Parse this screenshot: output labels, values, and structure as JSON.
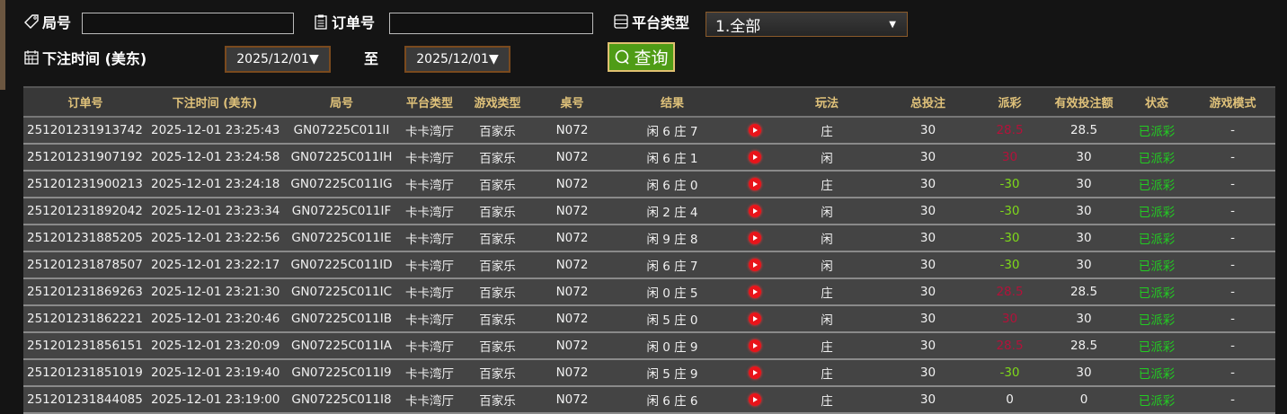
{
  "filters": {
    "round_label": "局号",
    "round_value": "",
    "order_label": "订单号",
    "order_value": "",
    "platform_label": "平台类型",
    "platform_selected": "1.全部",
    "bet_time_label": "下注时间 (美东)",
    "date_from": "2025/12/01▼",
    "to_label": "至",
    "date_to": "2025/12/01▼",
    "query_button": "查询"
  },
  "colors": {
    "header_text": "#e0c27a",
    "negative_payout": "#b3123a",
    "positive_payout": "#7fd91a",
    "status": "#22cc22",
    "query_button": "#4f9c16"
  },
  "table": {
    "columns": [
      "订单号",
      "下注时间 (美东)",
      "局号",
      "平台类型",
      "游戏类型",
      "桌号",
      "结果",
      "",
      "玩法",
      "总投注",
      "派彩",
      "有效投注额",
      "状态",
      "游戏模式"
    ],
    "rows": [
      [
        "251201231913742",
        "2025-12-01 23:25:43",
        "GN07225C011II",
        "卡卡湾厅",
        "百家乐",
        "N072",
        "闲 6 庄 7",
        "play-icon",
        "庄",
        "30",
        "28.5",
        "28.5",
        "已派彩",
        "-"
      ],
      [
        "251201231907192",
        "2025-12-01 23:24:58",
        "GN07225C011IH",
        "卡卡湾厅",
        "百家乐",
        "N072",
        "闲 6 庄 1",
        "play-icon",
        "闲",
        "30",
        "30",
        "30",
        "已派彩",
        "-"
      ],
      [
        "251201231900213",
        "2025-12-01 23:24:18",
        "GN07225C011IG",
        "卡卡湾厅",
        "百家乐",
        "N072",
        "闲 6 庄 0",
        "play-icon",
        "庄",
        "30",
        "-30",
        "30",
        "已派彩",
        "-"
      ],
      [
        "251201231892042",
        "2025-12-01 23:23:34",
        "GN07225C011IF",
        "卡卡湾厅",
        "百家乐",
        "N072",
        "闲 2 庄 4",
        "play-icon",
        "闲",
        "30",
        "-30",
        "30",
        "已派彩",
        "-"
      ],
      [
        "251201231885205",
        "2025-12-01 23:22:56",
        "GN07225C011IE",
        "卡卡湾厅",
        "百家乐",
        "N072",
        "闲 9 庄 8",
        "play-icon",
        "闲",
        "30",
        "-30",
        "30",
        "已派彩",
        "-"
      ],
      [
        "251201231878507",
        "2025-12-01 23:22:17",
        "GN07225C011ID",
        "卡卡湾厅",
        "百家乐",
        "N072",
        "闲 6 庄 7",
        "play-icon",
        "闲",
        "30",
        "-30",
        "30",
        "已派彩",
        "-"
      ],
      [
        "251201231869263",
        "2025-12-01 23:21:30",
        "GN07225C011IC",
        "卡卡湾厅",
        "百家乐",
        "N072",
        "闲 0 庄 5",
        "play-icon",
        "庄",
        "30",
        "28.5",
        "28.5",
        "已派彩",
        "-"
      ],
      [
        "251201231862221",
        "2025-12-01 23:20:46",
        "GN07225C011IB",
        "卡卡湾厅",
        "百家乐",
        "N072",
        "闲 5 庄 0",
        "play-icon",
        "闲",
        "30",
        "30",
        "30",
        "已派彩",
        "-"
      ],
      [
        "251201231856151",
        "2025-12-01 23:20:09",
        "GN07225C011IA",
        "卡卡湾厅",
        "百家乐",
        "N072",
        "闲 0 庄 9",
        "play-icon",
        "庄",
        "30",
        "28.5",
        "28.5",
        "已派彩",
        "-"
      ],
      [
        "251201231851019",
        "2025-12-01 23:19:40",
        "GN07225C011I9",
        "卡卡湾厅",
        "百家乐",
        "N072",
        "闲 5 庄 9",
        "play-icon",
        "庄",
        "30",
        "-30",
        "30",
        "已派彩",
        "-"
      ],
      [
        "251201231844085",
        "2025-12-01 23:19:00",
        "GN07225C011I8",
        "卡卡湾厅",
        "百家乐",
        "N072",
        "闲 6 庄 6",
        "play-icon",
        "庄",
        "30",
        "0",
        "0",
        "已派彩",
        "-"
      ]
    ]
  }
}
